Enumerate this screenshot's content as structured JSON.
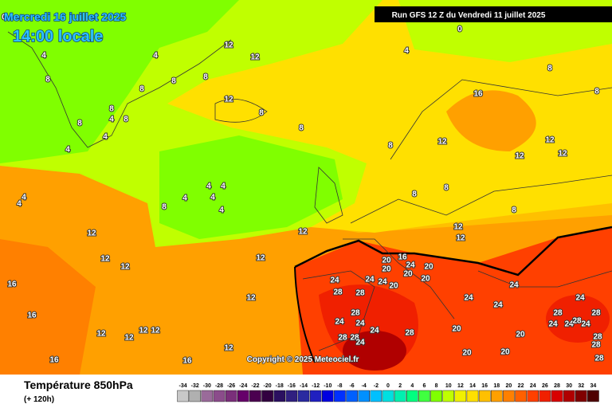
{
  "header": {
    "date": "Mercredi 16 juillet 2025",
    "time": "14:00 locale",
    "run": "Run GFS 12 Z du Vendredi 11 juillet 2025"
  },
  "copyright": "Copyright © 2025 Meteociel.fr",
  "footer": {
    "title": "Température 850hPa",
    "lead": "(+ 120h)"
  },
  "scale": {
    "values": [
      -34,
      -32,
      -30,
      -28,
      -26,
      -24,
      -22,
      -20,
      -18,
      -16,
      -14,
      -12,
      -10,
      -8,
      -6,
      -4,
      -2,
      0,
      2,
      4,
      6,
      8,
      10,
      12,
      14,
      16,
      18,
      20,
      22,
      24,
      26,
      28,
      30,
      32,
      34
    ],
    "colors": [
      "#c8c8c8",
      "#b0b0b0",
      "#9a6b9a",
      "#8b4c8b",
      "#7a2f7a",
      "#66006a",
      "#4b0050",
      "#320040",
      "#2b1060",
      "#302080",
      "#2a2aa0",
      "#2020c0",
      "#0000e0",
      "#0030ff",
      "#0060ff",
      "#0090ff",
      "#00c0ff",
      "#00e0e0",
      "#00f0b0",
      "#00ff80",
      "#40ff40",
      "#80ff00",
      "#c0ff00",
      "#f0f000",
      "#ffe000",
      "#ffc000",
      "#ffa000",
      "#ff8000",
      "#ff6000",
      "#ff4000",
      "#f02000",
      "#d80000",
      "#b00000",
      "#800000",
      "#500000"
    ]
  },
  "isotherm_labels": [
    0,
    0,
    4,
    4,
    4,
    8,
    8,
    8,
    8,
    12,
    12,
    8,
    8,
    8,
    4,
    8,
    8,
    4,
    4,
    8,
    16,
    12,
    12,
    12,
    12,
    8,
    8,
    4,
    4,
    4,
    4,
    4,
    8,
    8,
    8,
    8,
    12,
    12,
    12,
    12,
    12,
    12,
    12,
    12,
    16,
    16,
    12,
    12,
    12,
    12,
    12,
    16,
    16,
    20,
    16,
    20,
    24,
    20,
    20,
    20,
    24,
    24,
    24,
    20,
    28,
    28,
    24,
    24,
    24,
    24,
    28,
    24,
    24,
    28,
    28,
    24,
    28,
    20,
    20,
    24,
    24,
    28,
    24,
    28,
    28,
    28,
    24,
    28,
    20,
    20,
    28,
    4,
    4,
    12
  ]
}
